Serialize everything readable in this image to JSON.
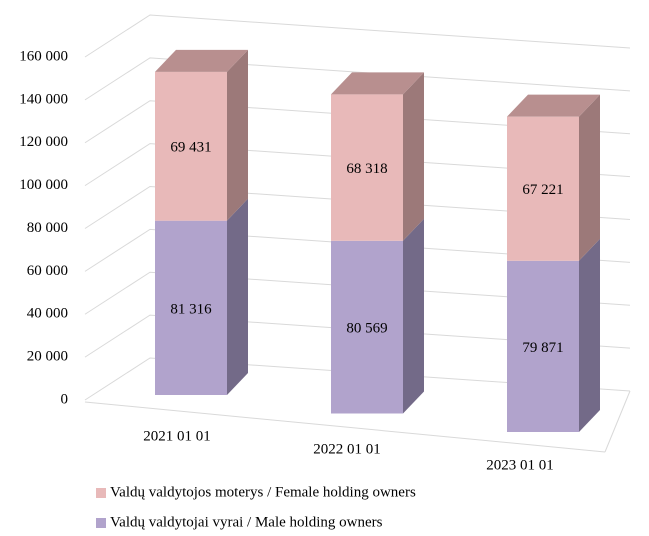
{
  "chart_data": {
    "type": "bar3d_stacked",
    "categories": [
      "2021 01 01",
      "2022 01 01",
      "2023 01 01"
    ],
    "series": [
      {
        "name": "Valdų valdytojai vyrai / Male holding owners",
        "color": "#b1a3cc",
        "side_color": "#736a88",
        "top_color": "#8f84a8",
        "values": [
          81316,
          80569,
          79871
        ],
        "value_labels": [
          "81 316",
          "80 569",
          "79 871"
        ]
      },
      {
        "name": "Valdų valdytojos moterys / Female holding owners",
        "color": "#e8b9b9",
        "side_color": "#9c7979",
        "top_color": "#b88f8f",
        "values": [
          69431,
          68318,
          67221
        ],
        "value_labels": [
          "69 431",
          "68 318",
          "67 221"
        ]
      }
    ],
    "ylim": [
      0,
      160000
    ],
    "yticks": [
      0,
      {
        "value": 20000,
        "label": "20 000"
      },
      {
        "value": 40000,
        "label": "40 000"
      },
      {
        "value": 60000,
        "label": "60 000"
      },
      {
        "value": 80000,
        "label": "80 000"
      },
      {
        "value": 100000,
        "label": "100 000"
      },
      {
        "value": 120000,
        "label": "120 000"
      },
      {
        "value": 140000,
        "label": "140 000"
      },
      {
        "value": 160000,
        "label": "160 000"
      }
    ],
    "grid": true
  }
}
